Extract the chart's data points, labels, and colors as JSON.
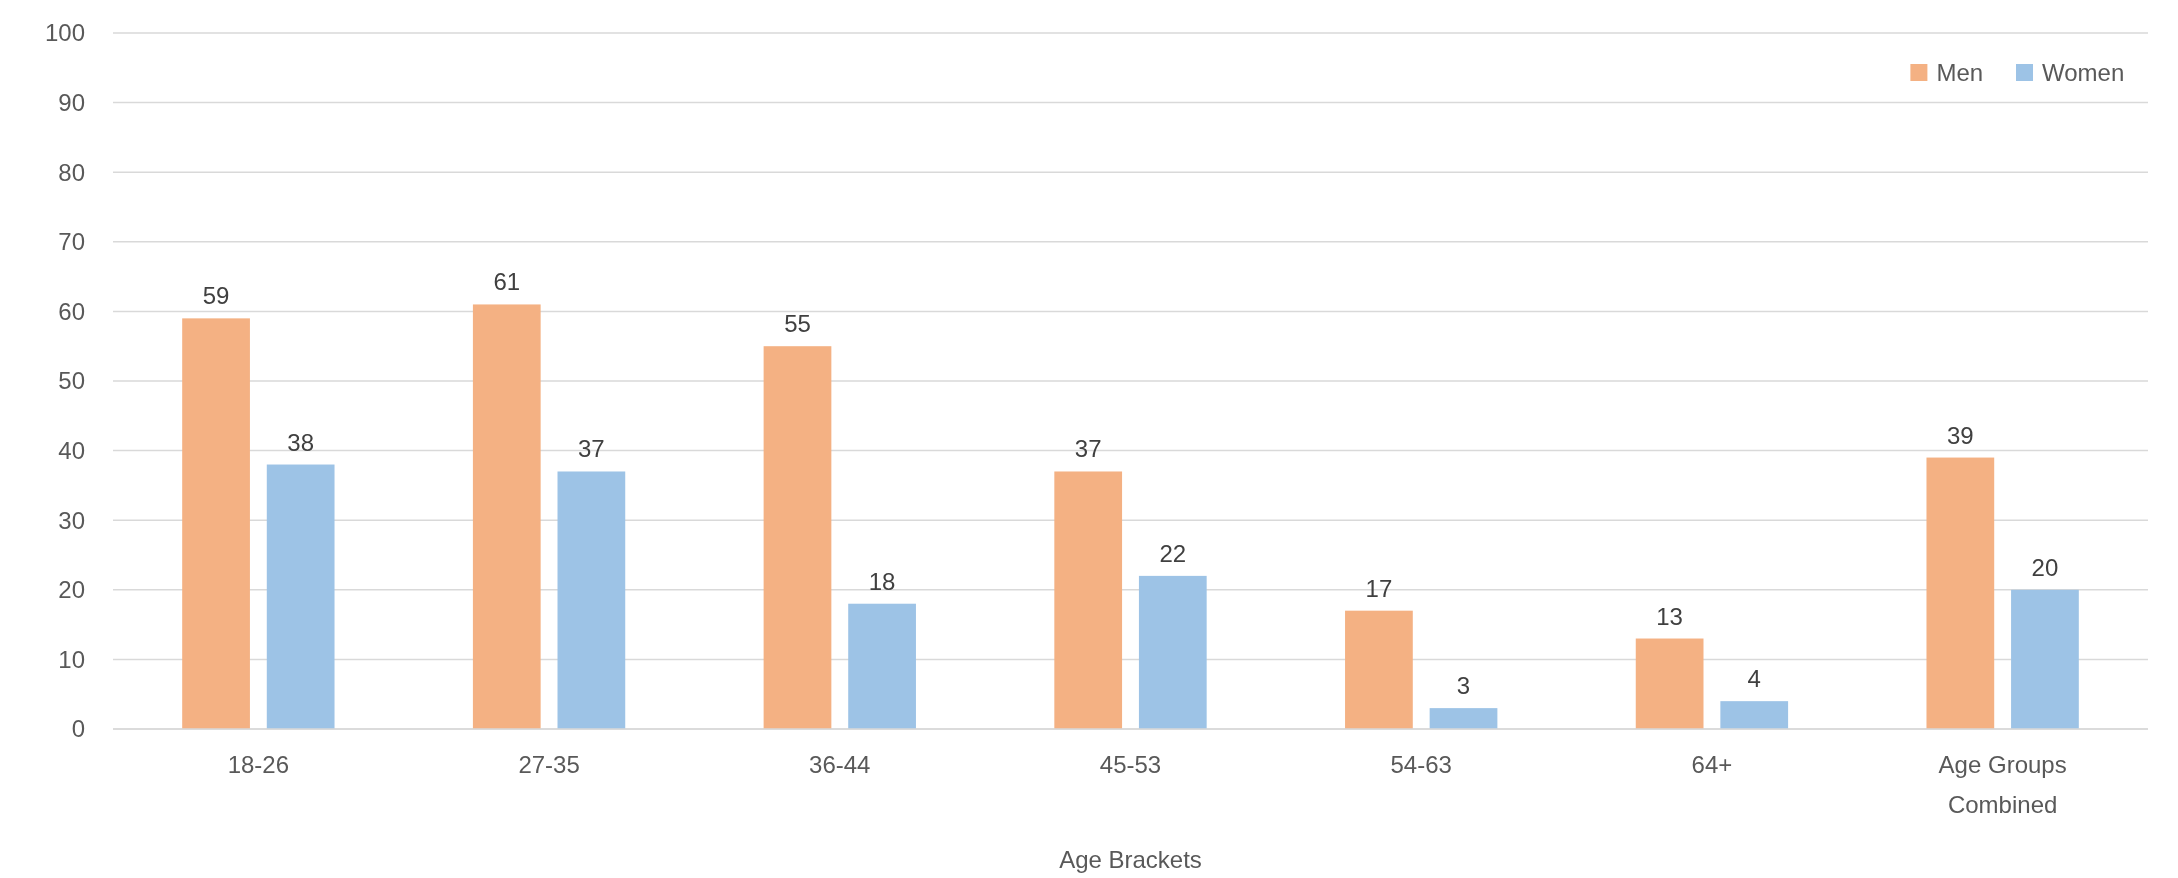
{
  "chart_data": {
    "type": "bar",
    "xlabel": "Age Brackets",
    "categories": [
      "18-26",
      "27-35",
      "36-44",
      "45-53",
      "54-63",
      "64+",
      "Age Groups Combined"
    ],
    "series": [
      {
        "name": "Men",
        "color": "#f4b183",
        "values": [
          59,
          61,
          55,
          37,
          17,
          13,
          39
        ]
      },
      {
        "name": "Women",
        "color": "#9dc3e6",
        "values": [
          38,
          37,
          18,
          22,
          3,
          4,
          20
        ]
      }
    ],
    "ylim": [
      0,
      100
    ],
    "yticks": [
      0,
      10,
      20,
      30,
      40,
      50,
      60,
      70,
      80,
      90,
      100
    ],
    "grid": "y",
    "legend": "top right",
    "data_labels": true
  }
}
